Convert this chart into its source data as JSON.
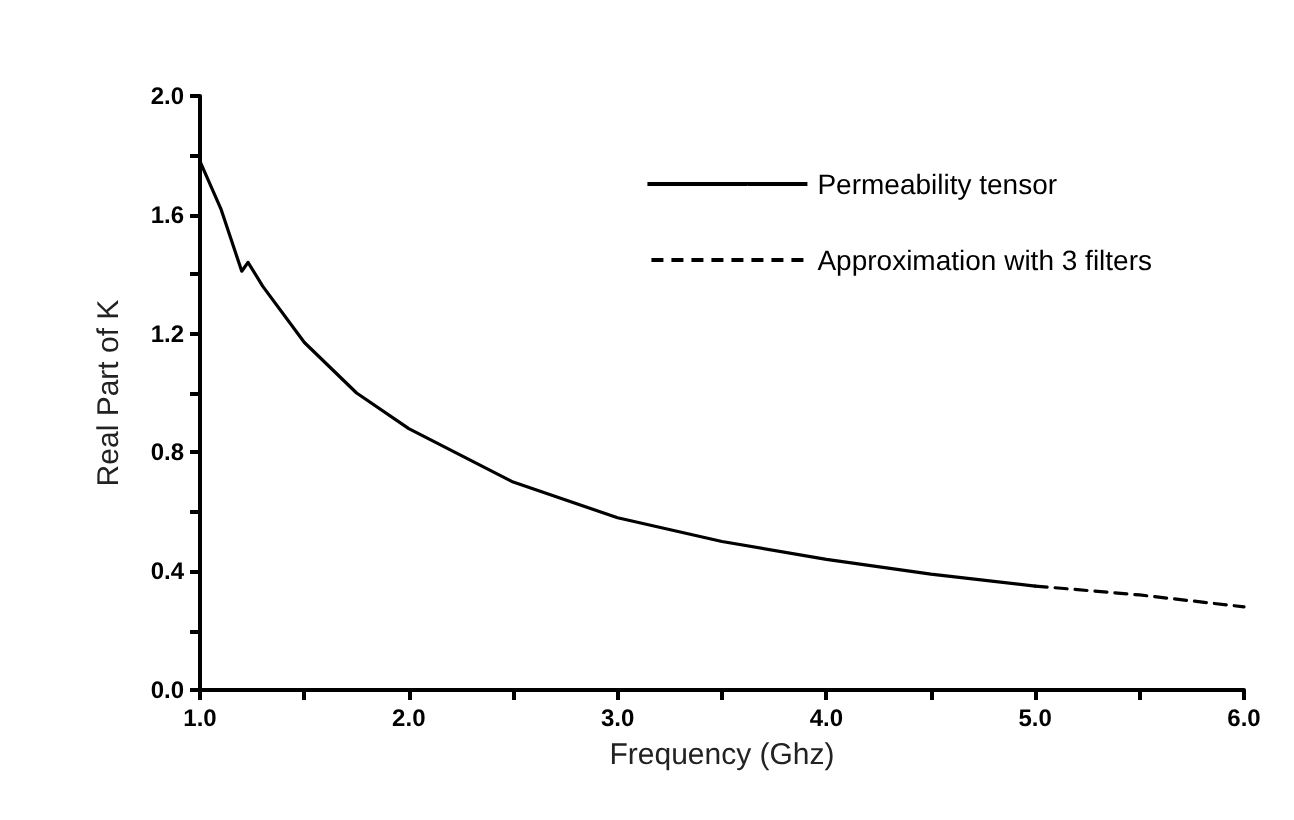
{
  "chart_data": {
    "type": "line",
    "xlabel": "Frequency (Ghz)",
    "ylabel": "Real Part of K",
    "xlim": [
      1.0,
      6.0
    ],
    "xticks": [
      {
        "value": 1.0,
        "label": "1.0"
      },
      {
        "value": 1.5,
        "label": null
      },
      {
        "value": 2.0,
        "label": "2.0"
      },
      {
        "value": 2.5,
        "label": null
      },
      {
        "value": 3.0,
        "label": "3.0"
      },
      {
        "value": 3.5,
        "label": null
      },
      {
        "value": 4.0,
        "label": "4.0"
      },
      {
        "value": 4.5,
        "label": null
      },
      {
        "value": 5.0,
        "label": "5.0"
      },
      {
        "value": 5.5,
        "label": null
      },
      {
        "value": 6.0,
        "label": "6.0"
      }
    ],
    "ylim": [
      0.0,
      2.0
    ],
    "yticks": [
      {
        "value": 0.0,
        "label": "0.0"
      },
      {
        "value": 0.2,
        "label": null
      },
      {
        "value": 0.4,
        "label": "0.4"
      },
      {
        "value": 0.6,
        "label": null
      },
      {
        "value": 0.8,
        "label": "0.8"
      },
      {
        "value": 1.0,
        "label": null
      },
      {
        "value": 1.2,
        "label": "1.2"
      },
      {
        "value": 1.4,
        "label": null
      },
      {
        "value": 1.6,
        "label": "1.6"
      },
      {
        "value": 1.8,
        "label": null
      },
      {
        "value": 2.0,
        "label": "2.0"
      }
    ],
    "grid": false,
    "legend": "top right",
    "marker": "none",
    "series": [
      {
        "name": "Permeability tensor",
        "color": "#000000",
        "line_style": "solid",
        "x": [
          1.0,
          1.1,
          1.2,
          1.23,
          1.3,
          1.5,
          1.75,
          2.0,
          2.5,
          3.0,
          3.5,
          4.0,
          4.5,
          5.0
        ],
        "values": [
          1.78,
          1.62,
          1.41,
          1.44,
          1.36,
          1.17,
          1.0,
          0.88,
          0.7,
          0.58,
          0.5,
          0.44,
          0.39,
          0.35
        ]
      },
      {
        "name": "Approximation with 3 filters",
        "color": "#000000",
        "line_style": "dashed",
        "x": [
          5.0,
          5.5,
          6.0
        ],
        "values": [
          0.35,
          0.32,
          0.28
        ]
      }
    ]
  }
}
